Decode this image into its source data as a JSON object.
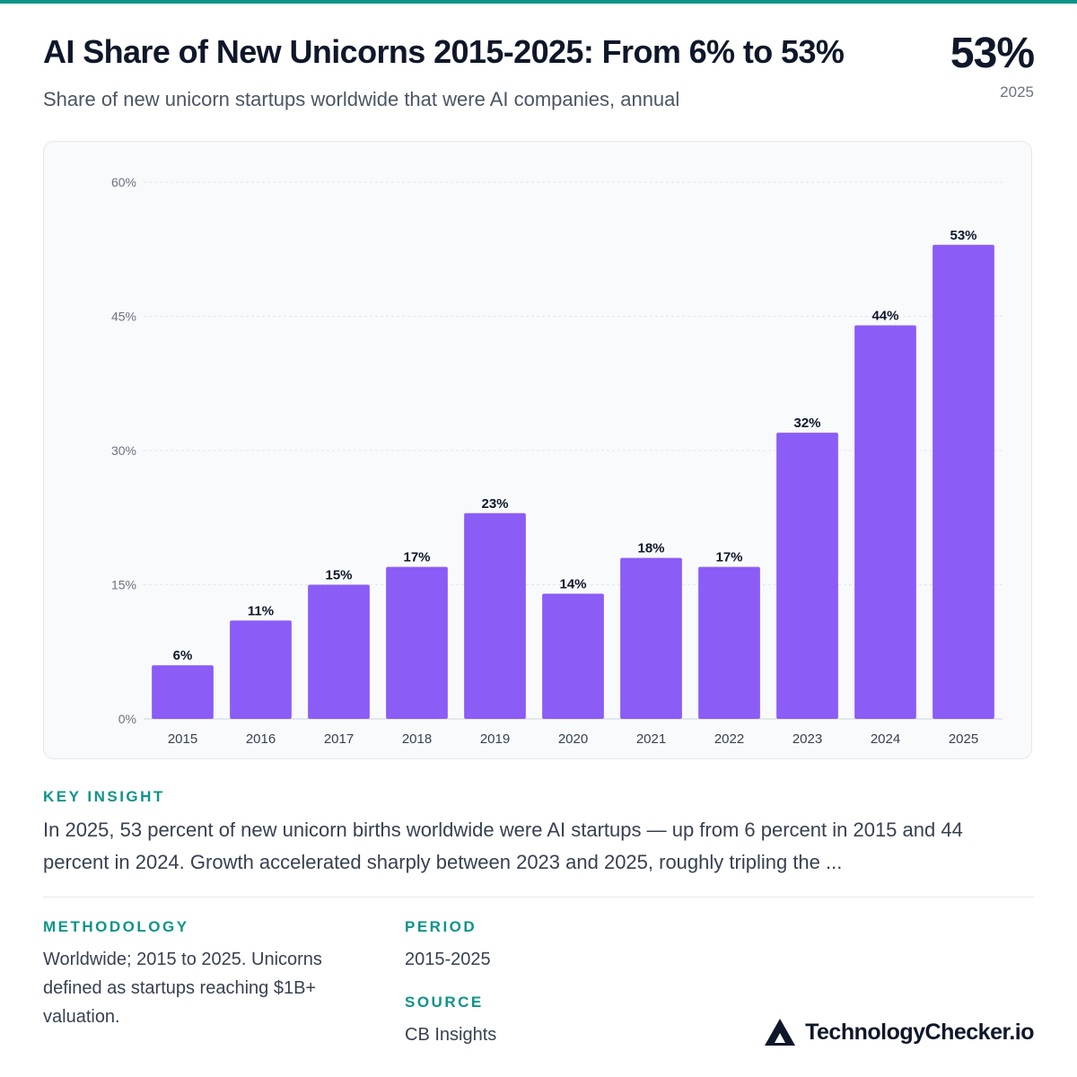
{
  "header": {
    "title": "AI Share of New Unicorns 2015-2025: From 6% to 53%",
    "subtitle": "Share of new unicorn startups worldwide that were AI companies, annual",
    "kpi_value": "53%",
    "kpi_label": "2025"
  },
  "chart_data": {
    "type": "bar",
    "title": "",
    "xlabel": "",
    "ylabel": "",
    "categories": [
      "2015",
      "2016",
      "2017",
      "2018",
      "2019",
      "2020",
      "2021",
      "2022",
      "2023",
      "2024",
      "2025"
    ],
    "values": [
      6,
      11,
      15,
      17,
      23,
      14,
      18,
      17,
      32,
      44,
      53
    ],
    "data_labels": [
      "6%",
      "11%",
      "15%",
      "17%",
      "23%",
      "14%",
      "18%",
      "17%",
      "32%",
      "44%",
      "53%"
    ],
    "ylim": [
      0,
      60
    ],
    "yticks": [
      0,
      15,
      30,
      45,
      60
    ],
    "ytick_labels": [
      "0%",
      "15%",
      "30%",
      "45%",
      "60%"
    ],
    "grid": true,
    "legend": "none",
    "bar_color": "#8b5cf6"
  },
  "insight": {
    "label": "KEY INSIGHT",
    "text": "In 2025, 53 percent of new unicorn births worldwide were AI startups — up from 6 percent in 2015 and 44 percent in 2024. Growth accelerated sharply between 2023 and 2025, roughly tripling the ..."
  },
  "methodology": {
    "label": "METHODOLOGY",
    "text": "Worldwide; 2015 to 2025. Unicorns defined as startups reaching $1B+ valuation."
  },
  "period": {
    "label": "PERIOD",
    "text": "2015-2025"
  },
  "source": {
    "label": "SOURCE",
    "text": "CB Insights"
  },
  "brand": {
    "name": "TechnologyChecker.io",
    "logo_icon": "triangle-logo-icon"
  },
  "colors": {
    "accent": "#0d9488",
    "bar": "#8b5cf6",
    "text": "#0f172a"
  }
}
